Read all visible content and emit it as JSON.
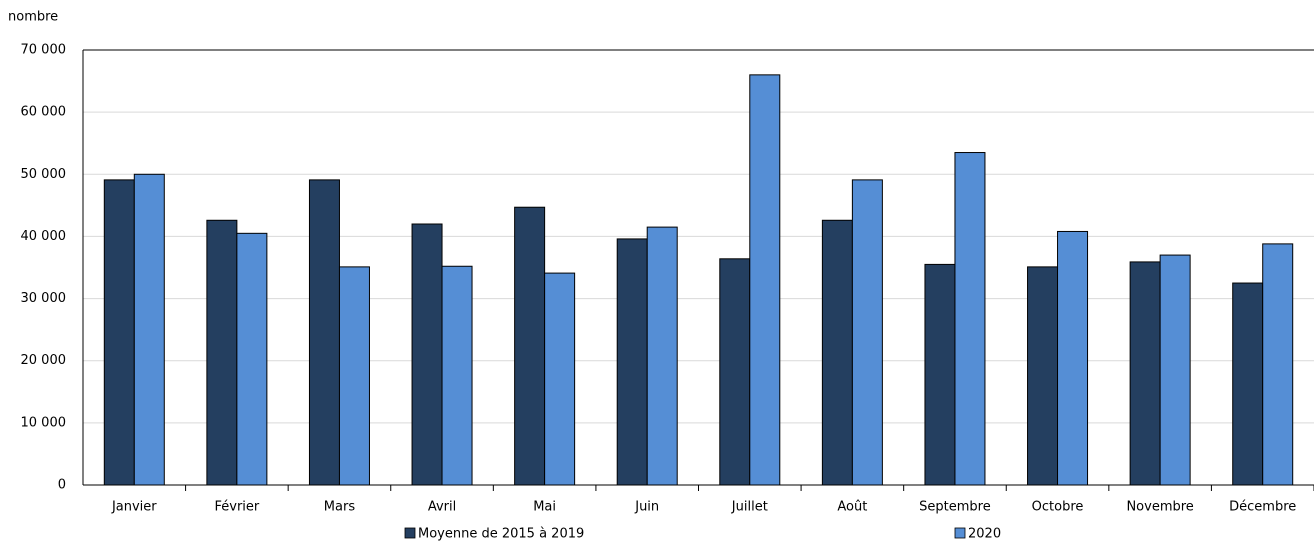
{
  "chart_data": {
    "type": "bar",
    "y_axis_label": "nombre",
    "categories": [
      "Janvier",
      "Février",
      "Mars",
      "Avril",
      "Mai",
      "Juin",
      "Juillet",
      "Août",
      "Septembre",
      "Octobre",
      "Novembre",
      "Décembre"
    ],
    "series": [
      {
        "name": "Moyenne de 2015 à 2019",
        "color": "#243f60",
        "values": [
          49100,
          42600,
          49100,
          42000,
          44700,
          39600,
          36400,
          42600,
          35500,
          35100,
          35900,
          32500
        ]
      },
      {
        "name": "2020",
        "color": "#558ed5",
        "values": [
          50000,
          40500,
          35100,
          35200,
          34100,
          41500,
          66000,
          49100,
          53500,
          40800,
          37000,
          38800
        ]
      }
    ],
    "ylim": [
      0,
      70000
    ],
    "yticks": [
      0,
      {
        "value": 10000,
        "label": "10 000"
      },
      {
        "value": 20000,
        "label": "20 000"
      },
      {
        "value": 30000,
        "label": "30 000"
      },
      {
        "value": 40000,
        "label": "40 000"
      },
      {
        "value": 50000,
        "label": "50 000"
      },
      {
        "value": 60000,
        "label": "60 000"
      },
      {
        "value": 70000,
        "label": "70 000"
      }
    ],
    "grid": true,
    "legend": "bottom"
  }
}
